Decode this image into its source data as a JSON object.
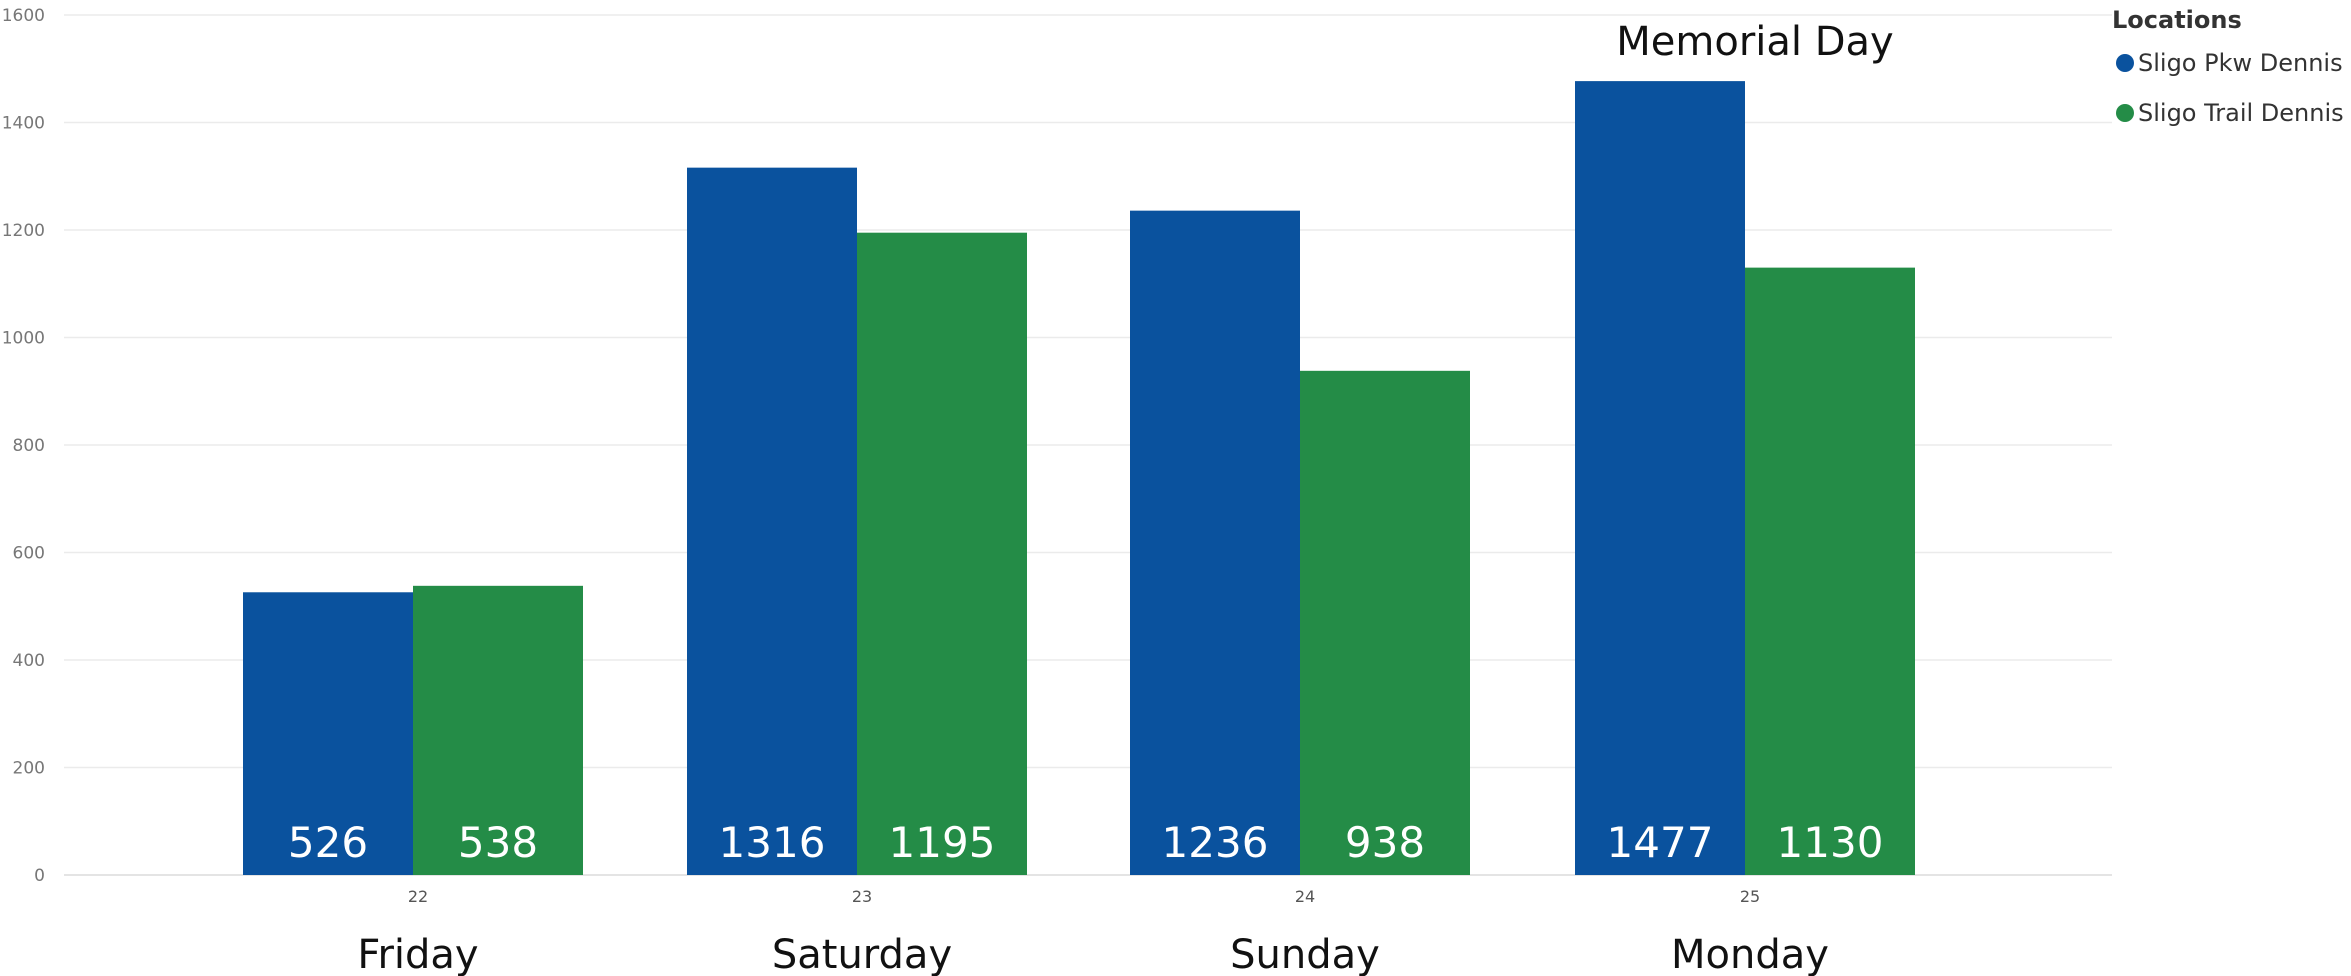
{
  "chart_data": {
    "type": "bar",
    "categories": [
      "22",
      "23",
      "24",
      "25"
    ],
    "day_labels": [
      "Friday",
      "Saturday",
      "Sunday",
      "Monday"
    ],
    "series": [
      {
        "name": "Sligo Pkw Dennis",
        "values": [
          526,
          1316,
          1236,
          1477
        ],
        "color": "#0A529E"
      },
      {
        "name": "Sligo Trail Dennis",
        "values": [
          538,
          1195,
          938,
          1130
        ],
        "color": "#248C47"
      }
    ],
    "ylim": [
      0,
      1600
    ],
    "yticks": [
      0,
      200,
      400,
      600,
      800,
      1000,
      1200,
      1400,
      1600
    ],
    "grid": true,
    "legend": {
      "title": "Locations",
      "position": "top-right"
    },
    "annotation": {
      "text": "Memorial Day",
      "category_index": 3
    }
  }
}
